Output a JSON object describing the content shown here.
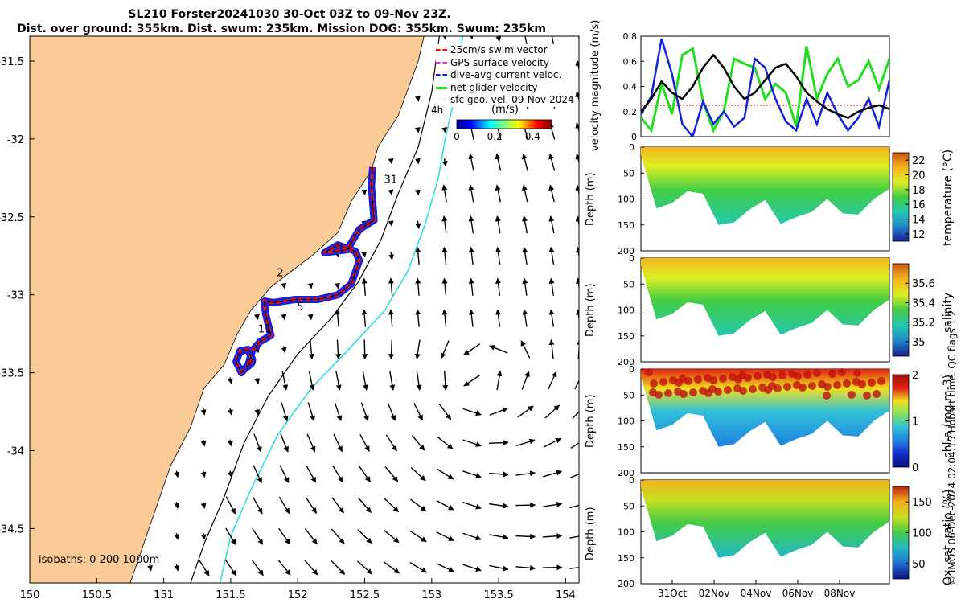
{
  "header": {
    "line1": "SL210 Forster20241030 30-Oct 03Z to 09-Nov 23Z.",
    "line2": "Dist. over ground: 355km. Dist. swum: 235km. Mission DOG: 355km. Swum: 235km"
  },
  "footer": "© IMOS 06-Dec-2024 02:04:15 Hobart time. QC flags 1  2",
  "colors": {
    "land": "#fbcb97",
    "shelf": "#000000",
    "deep": "#33dddd",
    "track_red": "#ee1111",
    "track_blue": "#1122dd"
  },
  "chart_data": [
    {
      "type": "map",
      "xlim": [
        150,
        154.2
      ],
      "ylim": [
        -34.85,
        -31.2
      ],
      "x_ticks": [
        150,
        150.5,
        151,
        151.5,
        152,
        152.5,
        153,
        153.5,
        154
      ],
      "y_ticks": [
        -31.5,
        -32,
        -32.5,
        -33,
        -33.5,
        -34,
        -34.5
      ],
      "legend": [
        "25cm/s swim vector",
        "GPS surface velocity",
        "dive-avg current veloc.",
        "net glider velocity",
        "sfc geo. vel. 09-Nov-2024"
      ],
      "colorbar": {
        "label": "(m/s)",
        "ticks": [
          0,
          0.2,
          0.4
        ],
        "range": [
          0,
          0.5
        ]
      },
      "isobaths_label": "isobaths: 0   200  1000m",
      "hour_label": "4h",
      "day_labels": [
        {
          "text": "31",
          "lon": 152.62,
          "lat": -32.26
        },
        {
          "text": "2",
          "lon": 151.82,
          "lat": -32.86
        },
        {
          "text": "5",
          "lon": 151.97,
          "lat": -33.08
        },
        {
          "text": "11",
          "lon": 151.68,
          "lat": -33.22
        }
      ],
      "track": [
        [
          152.56,
          -32.18
        ],
        [
          152.55,
          -32.3
        ],
        [
          152.57,
          -32.52
        ],
        [
          152.46,
          -32.58
        ],
        [
          152.37,
          -32.71
        ],
        [
          152.2,
          -32.73
        ],
        [
          152.3,
          -32.68
        ],
        [
          152.43,
          -32.72
        ],
        [
          152.46,
          -32.78
        ],
        [
          152.4,
          -32.93
        ],
        [
          152.3,
          -33.0
        ],
        [
          152.15,
          -33.03
        ],
        [
          151.98,
          -33.03
        ],
        [
          151.82,
          -33.05
        ],
        [
          151.75,
          -33.04
        ],
        [
          151.76,
          -33.12
        ],
        [
          151.8,
          -33.26
        ],
        [
          151.72,
          -33.3
        ],
        [
          151.66,
          -33.36
        ],
        [
          151.63,
          -33.45
        ],
        [
          151.58,
          -33.5
        ],
        [
          151.54,
          -33.43
        ],
        [
          151.57,
          -33.36
        ],
        [
          151.63,
          -33.35
        ],
        [
          151.66,
          -33.42
        ],
        [
          151.62,
          -33.47
        ]
      ]
    },
    {
      "type": "line",
      "ylabel": "velocity magnitude (m/s)",
      "ylim": [
        0,
        0.8
      ],
      "y_ticks": [
        0,
        0.2,
        0.4,
        0.6,
        0.8
      ],
      "x_ticks": [
        "31Oct",
        "02Nov",
        "04Nov",
        "06Nov",
        "08Nov"
      ],
      "x": [
        0,
        0.5,
        1,
        1.5,
        2,
        2.5,
        3,
        3.5,
        4,
        4.5,
        5,
        5.5,
        6,
        6.5,
        7,
        7.5,
        8,
        8.5,
        9,
        9.5,
        10,
        10.5,
        11,
        11.5,
        12
      ],
      "series": [
        {
          "name": "swim",
          "values": [
            0.25,
            0.25,
            0.25,
            0.25,
            0.25,
            0.25,
            0.25,
            0.25,
            0.25,
            0.25,
            0.25,
            0.25,
            0.25,
            0.25,
            0.25,
            0.25,
            0.25,
            0.25,
            0.25,
            0.25,
            0.25,
            0.25,
            0.25,
            0.25,
            0.25
          ]
        },
        {
          "name": "net glider velocity",
          "values": [
            0.15,
            0.05,
            0.42,
            0.18,
            0.65,
            0.7,
            0.28,
            0.05,
            0.2,
            0.62,
            0.58,
            0.55,
            0.3,
            0.42,
            0.35,
            0.08,
            0.72,
            0.3,
            0.5,
            0.62,
            0.4,
            0.45,
            0.6,
            0.38,
            0.62
          ]
        },
        {
          "name": "dive-avg current",
          "values": [
            0.18,
            0.32,
            0.78,
            0.5,
            0.1,
            0.0,
            0.28,
            0.1,
            0.2,
            0.08,
            0.15,
            0.62,
            0.55,
            0.3,
            0.12,
            0.05,
            0.3,
            0.1,
            0.35,
            0.18,
            0.05,
            0.15,
            0.3,
            0.08,
            0.45
          ]
        },
        {
          "name": "geostrophic",
          "values": [
            0.2,
            0.3,
            0.44,
            0.35,
            0.3,
            0.4,
            0.55,
            0.65,
            0.55,
            0.4,
            0.3,
            0.35,
            0.45,
            0.55,
            0.58,
            0.48,
            0.35,
            0.28,
            0.22,
            0.18,
            0.15,
            0.2,
            0.23,
            0.25,
            0.22
          ]
        }
      ]
    },
    {
      "type": "heatmap",
      "variable": "temperature",
      "ylabel": "Depth (m)",
      "cbar_label": "temperature (°C)",
      "cbar_ticks": [
        12,
        14,
        16,
        18,
        20,
        22
      ],
      "ylim": [
        200,
        0
      ],
      "y_ticks": [
        0,
        50,
        100,
        150,
        200
      ],
      "profile_depths": [
        15,
        118,
        108,
        85,
        90,
        150,
        145,
        120,
        102,
        148,
        135,
        125,
        100,
        128,
        130,
        100,
        80
      ],
      "surface_value": 21.5,
      "deep_value": 15
    },
    {
      "type": "heatmap",
      "variable": "salinity",
      "ylabel": "Depth (m)",
      "cbar_label": "salinity",
      "cbar_ticks": [
        35,
        35.2,
        35.4,
        35.6
      ],
      "ylim": [
        200,
        0
      ],
      "y_ticks": [
        0,
        50,
        100,
        150,
        200
      ],
      "profile_depths": [
        15,
        118,
        108,
        85,
        90,
        150,
        145,
        120,
        102,
        148,
        135,
        125,
        100,
        128,
        130,
        100,
        80
      ],
      "surface_value": 35.55,
      "deep_value": 35.3
    },
    {
      "type": "heatmap",
      "variable": "chl-a",
      "ylabel": "Depth (m)",
      "cbar_label": "chl-a (mg m-3)",
      "cbar_ticks": [
        0,
        1,
        2
      ],
      "ylim": [
        200,
        0
      ],
      "y_ticks": [
        0,
        50,
        100,
        150,
        200
      ],
      "profile_depths": [
        15,
        118,
        108,
        85,
        90,
        150,
        145,
        120,
        102,
        148,
        135,
        125,
        100,
        128,
        130,
        100,
        80
      ],
      "surface_value": 1.8,
      "deep_value": 0.2
    },
    {
      "type": "heatmap",
      "variable": "oxygen",
      "ylabel": "Depth (m)",
      "cbar_label": "Ox. sat. ratio (%)",
      "cbar_ticks": [
        50,
        100,
        150
      ],
      "ylim": [
        200,
        0
      ],
      "y_ticks": [
        0,
        50,
        100,
        150,
        200
      ],
      "profile_depths": [
        15,
        118,
        108,
        85,
        90,
        150,
        145,
        120,
        102,
        148,
        135,
        125,
        100,
        128,
        130,
        100,
        80
      ],
      "surface_value": 130,
      "deep_value": 100
    }
  ]
}
